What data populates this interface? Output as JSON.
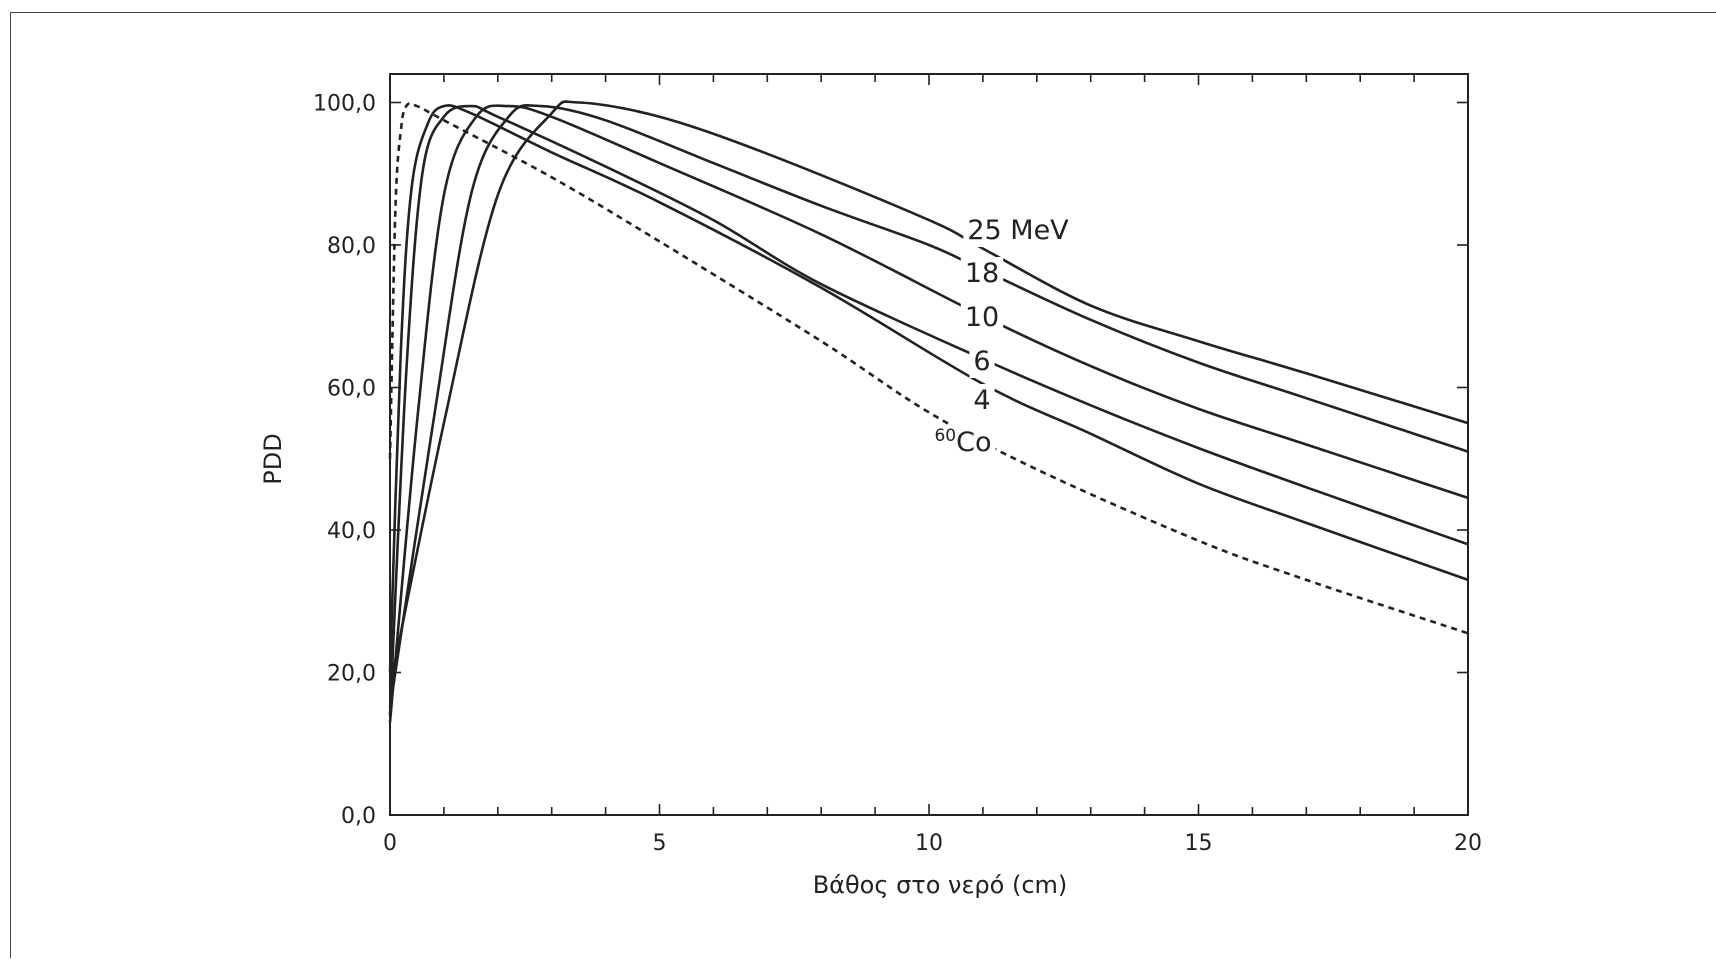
{
  "chart_data": {
    "type": "line",
    "title": "",
    "xlabel": "Βάθος στο νερό (cm)",
    "ylabel": "PDD",
    "xlim": [
      0,
      20
    ],
    "ylim": [
      0,
      104
    ],
    "x_ticks": [
      "0",
      "5",
      "10",
      "15",
      "20"
    ],
    "y_ticks": [
      "0,0",
      "20,0",
      "40,0",
      "60,0",
      "80,0",
      "100,0"
    ],
    "x_tick_values": [
      0,
      5,
      10,
      15,
      20
    ],
    "y_tick_values": [
      0,
      20,
      40,
      60,
      80,
      100
    ],
    "grid": false,
    "legend": "inline labels at curves",
    "series": [
      {
        "name": "25 MeV",
        "style": "solid",
        "x": [
          0,
          1.0,
          2.0,
          3.0,
          3.5,
          5,
          7,
          10,
          11,
          13,
          15,
          17,
          20
        ],
        "y": [
          18,
          55,
          87,
          98.5,
          100,
          98,
          92.8,
          83.5,
          79.5,
          71.5,
          66.5,
          62,
          55
        ]
      },
      {
        "name": "18",
        "style": "solid",
        "x": [
          0,
          0.8,
          1.5,
          2.2,
          2.8,
          4,
          6,
          8,
          10,
          11,
          13,
          15,
          17,
          20
        ],
        "y": [
          15,
          55,
          87,
          98,
          99.5,
          97.5,
          91.5,
          85.5,
          80,
          76.5,
          69.5,
          63.5,
          58.5,
          51
        ]
      },
      {
        "name": "10",
        "style": "solid",
        "x": [
          0,
          0.5,
          1.0,
          1.6,
          2.2,
          3,
          5,
          8,
          11,
          13,
          15,
          17,
          20
        ],
        "y": [
          13,
          55,
          87,
          98,
          99.5,
          98,
          91.5,
          81.5,
          70,
          63,
          57,
          52,
          44.5
        ]
      },
      {
        "name": "6",
        "style": "solid",
        "x": [
          0,
          0.3,
          0.6,
          1.0,
          1.5,
          2,
          4,
          6,
          8,
          11,
          13,
          15,
          17,
          20
        ],
        "y": [
          14,
          62,
          90,
          98,
          99.5,
          98,
          91,
          83.5,
          74.5,
          64,
          57.5,
          51.5,
          46,
          38
        ]
      },
      {
        "name": "4",
        "style": "solid",
        "x": [
          0,
          0.2,
          0.4,
          0.7,
          1.0,
          1.5,
          3,
          5,
          8,
          11,
          13,
          15,
          17,
          20
        ],
        "y": [
          20,
          65,
          88,
          97,
          99.5,
          98.5,
          93,
          86,
          74,
          60.5,
          53.5,
          46.5,
          41,
          33
        ]
      },
      {
        "name": "Co",
        "superscript": "60",
        "style": "dashed",
        "x": [
          0,
          0.1,
          0.2,
          0.3,
          0.5,
          1,
          3,
          5,
          8,
          10,
          12,
          15,
          17,
          20
        ],
        "y": [
          50,
          85,
          96,
          99.5,
          99.5,
          97.5,
          89.5,
          80.5,
          66.5,
          56.5,
          48.5,
          38.5,
          33,
          25.5
        ]
      }
    ]
  }
}
